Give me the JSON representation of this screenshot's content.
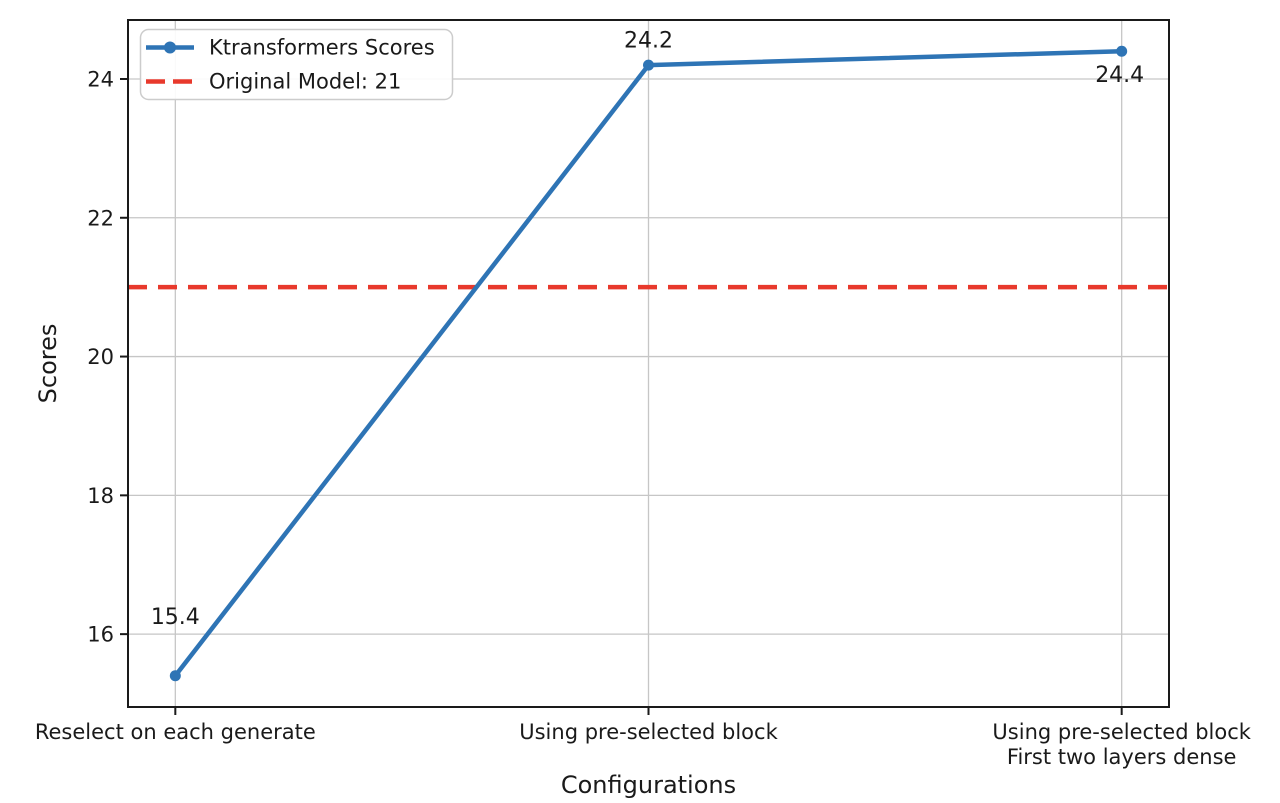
{
  "chart_data": {
    "type": "line",
    "title": "",
    "xlabel": "Configurations",
    "ylabel": "Scores",
    "categories": [
      "Reselect on each generate",
      "Using pre-selected block",
      "Using pre-selected block\nFirst two layers dense"
    ],
    "series": [
      {
        "name": "Ktransformers Scores",
        "values": [
          15.4,
          24.2,
          24.4
        ],
        "marker": "circle"
      }
    ],
    "reference_line": {
      "label": "Original Model: 21",
      "value": 21,
      "style": "dashed"
    },
    "point_labels": [
      "15.4",
      "24.2",
      "24.4"
    ],
    "yticks": [
      16,
      18,
      20,
      22,
      24
    ],
    "ylim": [
      14.95,
      24.85
    ],
    "grid": true,
    "legend_position": "upper-left",
    "colors": {
      "series": "#2e74b5",
      "reference": "#e8392c",
      "grid": "#c6c6c6",
      "spine": "#1a1a1a",
      "text": "#1a1a1a",
      "legend_border": "#cccccc",
      "background": "#ffffff"
    }
  }
}
